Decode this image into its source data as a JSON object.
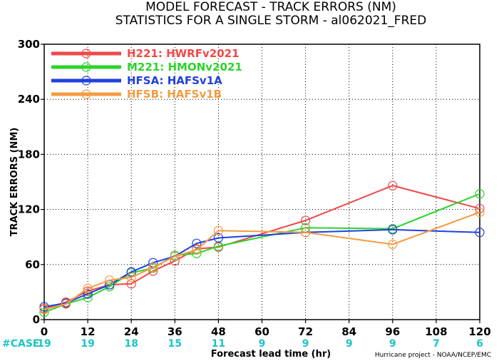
{
  "chart_data": {
    "type": "line",
    "title": "MODEL FORECAST - TRACK ERRORS (NM)",
    "subtitle": "STATISTICS FOR A SINGLE STORM - al062021_FRED",
    "xlabel": "Forecast lead time (hr)",
    "ylabel": "TRACK ERRORS (NM)",
    "xlim": [
      0,
      120
    ],
    "ylim": [
      0,
      300
    ],
    "x_ticks": [
      0,
      12,
      24,
      36,
      48,
      60,
      72,
      84,
      96,
      108,
      120
    ],
    "y_ticks": [
      0,
      60,
      120,
      180,
      240,
      300
    ],
    "y_tick_labels": [
      "0",
      "60",
      "120",
      "180",
      "240",
      "300"
    ],
    "case_label": "#CASE",
    "case_counts": [
      {
        "x": 0,
        "n": "19"
      },
      {
        "x": 12,
        "n": "19"
      },
      {
        "x": 24,
        "n": "18"
      },
      {
        "x": 36,
        "n": "15"
      },
      {
        "x": 48,
        "n": "11"
      },
      {
        "x": 60,
        "n": "9"
      },
      {
        "x": 72,
        "n": "9"
      },
      {
        "x": 84,
        "n": "9"
      },
      {
        "x": 96,
        "n": "9"
      },
      {
        "x": 108,
        "n": "7"
      },
      {
        "x": 120,
        "n": "6"
      }
    ],
    "legend_position": "top-left",
    "series": [
      {
        "name": "H221: HWRFv2021",
        "color": "#f04848",
        "x": [
          0,
          6,
          12,
          18,
          24,
          30,
          36,
          42,
          48,
          72,
          96,
          120
        ],
        "y": [
          12,
          19,
          31,
          38,
          39,
          53,
          64,
          77,
          79,
          108,
          146,
          121
        ]
      },
      {
        "name": "M221: HMONv2021",
        "color": "#2bd42b",
        "x": [
          0,
          6,
          12,
          18,
          24,
          30,
          36,
          42,
          48,
          72,
          96,
          120
        ],
        "y": [
          8,
          17,
          24,
          36,
          51,
          56,
          70,
          72,
          80,
          100,
          99,
          137
        ]
      },
      {
        "name": "HFSA: HAFSv1A",
        "color": "#2040e0",
        "x": [
          0,
          6,
          12,
          18,
          24,
          30,
          36,
          42,
          48,
          72,
          96,
          120
        ],
        "y": [
          14,
          18,
          28,
          38,
          52,
          62,
          69,
          83,
          89,
          95,
          98,
          95
        ]
      },
      {
        "name": "HFSB: HAFSv1B",
        "color": "#f59b42",
        "x": [
          0,
          6,
          12,
          18,
          24,
          30,
          36,
          42,
          48,
          72,
          96,
          120
        ],
        "y": [
          11,
          17,
          34,
          43,
          46,
          57,
          69,
          76,
          97,
          95,
          82,
          117
        ]
      }
    ]
  },
  "credit": "Hurricane project - NOAA/NCEP/EMC"
}
